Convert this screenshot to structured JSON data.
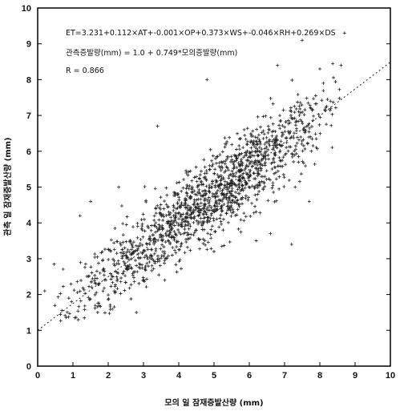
{
  "chart_data": {
    "type": "scatter",
    "title": "",
    "xlabel": "모의 일 잠재증발산량 (mm)",
    "ylabel": "관측 일 잠재증발산량 (mm)",
    "xlim": [
      0,
      10
    ],
    "ylim": [
      0,
      10
    ],
    "x_ticks": [
      "0",
      "1",
      "2",
      "3",
      "4",
      "5",
      "6",
      "7",
      "8",
      "9",
      "10"
    ],
    "y_ticks": [
      "0",
      "1",
      "2",
      "3",
      "4",
      "5",
      "6",
      "7",
      "8",
      "9",
      "10"
    ],
    "grid": false,
    "annotations": [
      "ET=3.231+0.112×AT+-0.001×OP+0.373×WS+-0.046×RH+0.269×DS",
      "관측증발량(mm) = 1.0 + 0.749*모의증발량(mm)",
      "R = 0.866"
    ],
    "regression_line": {
      "intercept": 1.0,
      "slope": 0.749,
      "x_range": [
        0,
        10
      ],
      "style": "dotted"
    },
    "point_cloud": {
      "description_source": "dense cloud of + markers along regression line",
      "n": 1500,
      "x_range": [
        0.3,
        8.7
      ],
      "x_mode": 5.2,
      "y_spread_sd": 0.55
    },
    "outliers": [
      {
        "x": 0.2,
        "y": 2.1
      },
      {
        "x": 1.5,
        "y": 4.6
      },
      {
        "x": 1.2,
        "y": 4.2
      },
      {
        "x": 2.3,
        "y": 5.0
      },
      {
        "x": 3.4,
        "y": 6.7
      },
      {
        "x": 4.8,
        "y": 8.0
      },
      {
        "x": 6.8,
        "y": 8.4
      },
      {
        "x": 7.5,
        "y": 9.1
      },
      {
        "x": 8.0,
        "y": 8.3
      },
      {
        "x": 8.6,
        "y": 8.4
      },
      {
        "x": 8.7,
        "y": 9.3
      },
      {
        "x": 8.3,
        "y": 7.4
      },
      {
        "x": 8.1,
        "y": 7.9
      },
      {
        "x": 7.2,
        "y": 3.4
      },
      {
        "x": 6.6,
        "y": 3.7
      },
      {
        "x": 7.7,
        "y": 4.6
      },
      {
        "x": 7.3,
        "y": 5.0
      },
      {
        "x": 6.2,
        "y": 3.5
      },
      {
        "x": 5.0,
        "y": 3.2
      },
      {
        "x": 2.8,
        "y": 1.5
      },
      {
        "x": 1.7,
        "y": 1.5
      },
      {
        "x": 3.6,
        "y": 2.4
      }
    ]
  }
}
